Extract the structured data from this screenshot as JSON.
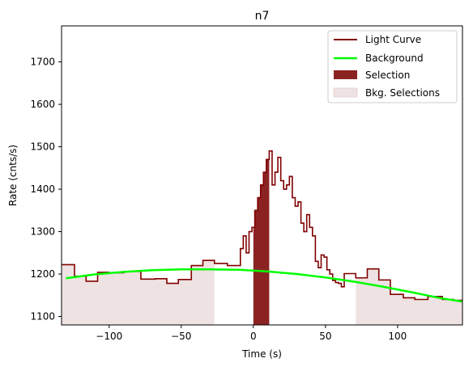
{
  "chart_data": {
    "type": "line",
    "title": "n7",
    "xlabel": "Time (s)",
    "ylabel": "Rate (cnts/s)",
    "xlim": [
      -133,
      145
    ],
    "ylim": [
      1080,
      1785
    ],
    "xticks": [
      -100,
      -50,
      0,
      50,
      100
    ],
    "yticks": [
      1100,
      1200,
      1300,
      1400,
      1500,
      1600,
      1700
    ],
    "grid": false,
    "legend_position": "top-right",
    "legend": [
      "Light Curve",
      "Background",
      "Selection",
      "Bkg. Selections"
    ],
    "colors": {
      "light_curve": "#800000",
      "background": "#00ff00",
      "selection": "#8b2323",
      "bkg_selection": "#efe2e2"
    },
    "selection": [
      0,
      11
    ],
    "bkg_selections": [
      [
        -133,
        -27
      ],
      [
        71,
        145
      ]
    ],
    "background_model": {
      "x": [
        -130,
        -110,
        -90,
        -70,
        -50,
        -30,
        -10,
        10,
        30,
        50,
        70,
        90,
        110,
        130,
        145
      ],
      "y": [
        1190,
        1199,
        1205,
        1209,
        1211,
        1211,
        1210,
        1206,
        1200,
        1192,
        1182,
        1170,
        1157,
        1143,
        1135
      ]
    },
    "light_curve": {
      "edges": [
        -133,
        -124,
        -116,
        -108,
        -100,
        -90,
        -78,
        -68,
        -60,
        -52,
        -43,
        -35,
        -27,
        -18,
        -9,
        -7,
        -5,
        -3,
        -1,
        1,
        3,
        5,
        7,
        9,
        11,
        13,
        15,
        17,
        19,
        21,
        23,
        25,
        27,
        29,
        31,
        33,
        35,
        37,
        39,
        41,
        43,
        45,
        47,
        49,
        51,
        53,
        55,
        57,
        59,
        61,
        63,
        71,
        79,
        87,
        95,
        104,
        112,
        121,
        131,
        139,
        145
      ],
      "values": [
        1222,
        1195,
        1183,
        1204,
        1203,
        1206,
        1188,
        1189,
        1178,
        1187,
        1220,
        1232,
        1225,
        1220,
        1260,
        1290,
        1250,
        1300,
        1310,
        1350,
        1380,
        1410,
        1440,
        1470,
        1490,
        1410,
        1440,
        1475,
        1420,
        1400,
        1410,
        1430,
        1380,
        1360,
        1370,
        1320,
        1300,
        1340,
        1310,
        1290,
        1230,
        1215,
        1245,
        1240,
        1210,
        1200,
        1185,
        1180,
        1178,
        1170,
        1201,
        1191,
        1212,
        1186,
        1152,
        1144,
        1140,
        1147,
        1140,
        1138
      ]
    }
  }
}
